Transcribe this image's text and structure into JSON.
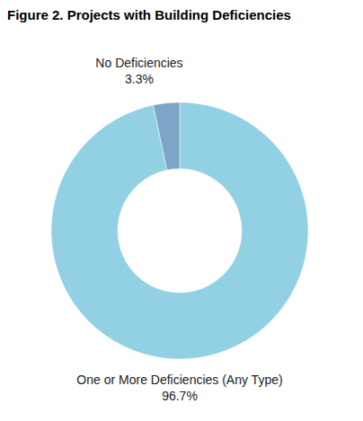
{
  "chart_data": {
    "type": "pie",
    "title": "Figure 2. Projects with Building Deficiencies",
    "categories": [
      "One or More Deficiencies (Any Type)",
      "No Deficiencies"
    ],
    "values": [
      96.7,
      3.3
    ],
    "value_labels": [
      "96.7%",
      "3.3%"
    ],
    "colors": [
      "#92d0e4",
      "#7ca5c8"
    ],
    "data_labels": true
  }
}
